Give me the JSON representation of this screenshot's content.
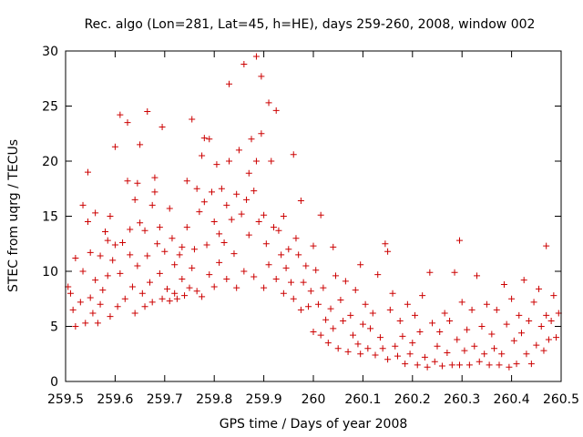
{
  "chart_data": {
    "type": "scatter",
    "title": "Rec. algo (Lon=281, Lat=45, h=HE), days 259-260, 2008, window 002",
    "xlabel": "GPS time / Days of year 2008",
    "ylabel": "STEC from uqrg / TECUs",
    "xlim": [
      259.5,
      260.5
    ],
    "ylim": [
      0,
      30
    ],
    "xticks": [
      "259.5",
      "259.6",
      "259.7",
      "259.8",
      "259.9",
      "260",
      "260.1",
      "260.2",
      "260.3",
      "260.4",
      "260.5"
    ],
    "yticks": [
      "0",
      "5",
      "10",
      "15",
      "20",
      "25",
      "30"
    ],
    "grid": false,
    "marker": "+",
    "color": "#cc0000",
    "points": [
      [
        259.505,
        8.6
      ],
      [
        259.51,
        8.0
      ],
      [
        259.515,
        6.5
      ],
      [
        259.52,
        5.0
      ],
      [
        259.52,
        11.2
      ],
      [
        259.53,
        7.2
      ],
      [
        259.535,
        16.0
      ],
      [
        259.535,
        10.0
      ],
      [
        259.54,
        5.3
      ],
      [
        259.545,
        14.5
      ],
      [
        259.545,
        19.0
      ],
      [
        259.55,
        11.7
      ],
      [
        259.55,
        7.6
      ],
      [
        259.555,
        6.2
      ],
      [
        259.56,
        15.3
      ],
      [
        259.56,
        9.2
      ],
      [
        259.565,
        5.3
      ],
      [
        259.57,
        11.4
      ],
      [
        259.57,
        7.0
      ],
      [
        259.575,
        8.3
      ],
      [
        259.58,
        13.6
      ],
      [
        259.585,
        12.8
      ],
      [
        259.585,
        9.6
      ],
      [
        259.59,
        5.9
      ],
      [
        259.59,
        15.0
      ],
      [
        259.595,
        11.0
      ],
      [
        259.6,
        21.3
      ],
      [
        259.6,
        12.4
      ],
      [
        259.605,
        6.8
      ],
      [
        259.61,
        24.2
      ],
      [
        259.61,
        9.8
      ],
      [
        259.615,
        12.6
      ],
      [
        259.62,
        7.5
      ],
      [
        259.625,
        23.5
      ],
      [
        259.625,
        18.2
      ],
      [
        259.63,
        13.8
      ],
      [
        259.63,
        11.5
      ],
      [
        259.635,
        8.6
      ],
      [
        259.64,
        16.5
      ],
      [
        259.64,
        6.2
      ],
      [
        259.645,
        18.0
      ],
      [
        259.645,
        10.5
      ],
      [
        259.65,
        21.5
      ],
      [
        259.65,
        14.4
      ],
      [
        259.655,
        8.0
      ],
      [
        259.66,
        13.7
      ],
      [
        259.66,
        6.8
      ],
      [
        259.665,
        24.5
      ],
      [
        259.665,
        11.4
      ],
      [
        259.67,
        9.0
      ],
      [
        259.675,
        16.0
      ],
      [
        259.675,
        7.2
      ],
      [
        259.68,
        18.5
      ],
      [
        259.68,
        17.2
      ],
      [
        259.685,
        12.5
      ],
      [
        259.69,
        14.0
      ],
      [
        259.69,
        9.8
      ],
      [
        259.695,
        23.1
      ],
      [
        259.695,
        7.5
      ],
      [
        259.7,
        11.8
      ],
      [
        259.705,
        8.4
      ],
      [
        259.71,
        7.3
      ],
      [
        259.71,
        15.7
      ],
      [
        259.715,
        13.0
      ],
      [
        259.72,
        10.6
      ],
      [
        259.72,
        8.0
      ],
      [
        259.725,
        7.5
      ],
      [
        259.73,
        11.5
      ],
      [
        259.735,
        12.2
      ],
      [
        259.735,
        9.3
      ],
      [
        259.74,
        7.8
      ],
      [
        259.745,
        18.2
      ],
      [
        259.745,
        14.0
      ],
      [
        259.75,
        8.5
      ],
      [
        259.755,
        23.8
      ],
      [
        259.755,
        10.3
      ],
      [
        259.76,
        12.0
      ],
      [
        259.765,
        17.5
      ],
      [
        259.765,
        8.2
      ],
      [
        259.77,
        15.4
      ],
      [
        259.775,
        20.5
      ],
      [
        259.775,
        7.7
      ],
      [
        259.78,
        22.1
      ],
      [
        259.78,
        16.3
      ],
      [
        259.785,
        12.4
      ],
      [
        259.79,
        22.0
      ],
      [
        259.79,
        9.7
      ],
      [
        259.795,
        17.2
      ],
      [
        259.8,
        14.5
      ],
      [
        259.8,
        8.6
      ],
      [
        259.805,
        19.7
      ],
      [
        259.81,
        13.4
      ],
      [
        259.81,
        10.8
      ],
      [
        259.815,
        17.5
      ],
      [
        259.82,
        12.6
      ],
      [
        259.825,
        16.0
      ],
      [
        259.825,
        9.3
      ],
      [
        259.83,
        27.0
      ],
      [
        259.83,
        20.0
      ],
      [
        259.835,
        14.7
      ],
      [
        259.84,
        11.6
      ],
      [
        259.845,
        17.0
      ],
      [
        259.845,
        8.5
      ],
      [
        259.85,
        21.0
      ],
      [
        259.855,
        15.2
      ],
      [
        259.86,
        28.8
      ],
      [
        259.86,
        10.0
      ],
      [
        259.865,
        16.5
      ],
      [
        259.87,
        18.9
      ],
      [
        259.87,
        13.3
      ],
      [
        259.875,
        22.0
      ],
      [
        259.88,
        17.3
      ],
      [
        259.88,
        9.5
      ],
      [
        259.885,
        29.5
      ],
      [
        259.885,
        20.0
      ],
      [
        259.89,
        14.5
      ],
      [
        259.895,
        27.7
      ],
      [
        259.895,
        22.5
      ],
      [
        259.9,
        15.1
      ],
      [
        259.9,
        8.5
      ],
      [
        259.905,
        12.5
      ],
      [
        259.91,
        25.3
      ],
      [
        259.91,
        10.6
      ],
      [
        259.915,
        20.0
      ],
      [
        259.92,
        14.0
      ],
      [
        259.925,
        24.6
      ],
      [
        259.925,
        9.3
      ],
      [
        259.93,
        13.7
      ],
      [
        259.935,
        11.5
      ],
      [
        259.94,
        15.0
      ],
      [
        259.94,
        8.0
      ],
      [
        259.945,
        10.3
      ],
      [
        259.95,
        12.0
      ],
      [
        259.955,
        9.0
      ],
      [
        259.96,
        20.6
      ],
      [
        259.96,
        7.5
      ],
      [
        259.965,
        13.0
      ],
      [
        259.97,
        11.5
      ],
      [
        259.975,
        6.5
      ],
      [
        259.975,
        16.4
      ],
      [
        259.98,
        9.0
      ],
      [
        259.985,
        10.5
      ],
      [
        259.99,
        6.8
      ],
      [
        259.995,
        8.2
      ],
      [
        260.0,
        12.3
      ],
      [
        260.0,
        4.5
      ],
      [
        260.005,
        10.1
      ],
      [
        260.01,
        7.0
      ],
      [
        260.015,
        15.1
      ],
      [
        260.015,
        4.2
      ],
      [
        260.02,
        8.5
      ],
      [
        260.025,
        5.6
      ],
      [
        260.03,
        3.5
      ],
      [
        260.035,
        6.6
      ],
      [
        260.04,
        12.2
      ],
      [
        260.04,
        4.8
      ],
      [
        260.045,
        9.6
      ],
      [
        260.05,
        3.0
      ],
      [
        260.055,
        7.4
      ],
      [
        260.06,
        5.5
      ],
      [
        260.065,
        9.1
      ],
      [
        260.07,
        2.7
      ],
      [
        260.075,
        6.0
      ],
      [
        260.08,
        4.2
      ],
      [
        260.085,
        8.3
      ],
      [
        260.09,
        3.4
      ],
      [
        260.095,
        10.6
      ],
      [
        260.095,
        2.5
      ],
      [
        260.1,
        5.2
      ],
      [
        260.105,
        7.0
      ],
      [
        260.11,
        3.0
      ],
      [
        260.115,
        4.8
      ],
      [
        260.12,
        6.2
      ],
      [
        260.125,
        2.4
      ],
      [
        260.13,
        9.7
      ],
      [
        260.135,
        4.0
      ],
      [
        260.14,
        3.0
      ],
      [
        260.145,
        12.5
      ],
      [
        260.15,
        11.8
      ],
      [
        260.15,
        2.0
      ],
      [
        260.155,
        6.5
      ],
      [
        260.16,
        8.0
      ],
      [
        260.165,
        3.2
      ],
      [
        260.17,
        2.3
      ],
      [
        260.175,
        5.5
      ],
      [
        260.18,
        4.1
      ],
      [
        260.185,
        1.6
      ],
      [
        260.19,
        7.0
      ],
      [
        260.195,
        2.5
      ],
      [
        260.2,
        3.5
      ],
      [
        260.205,
        6.0
      ],
      [
        260.21,
        1.5
      ],
      [
        260.215,
        4.5
      ],
      [
        260.22,
        7.8
      ],
      [
        260.225,
        2.2
      ],
      [
        260.23,
        1.3
      ],
      [
        260.235,
        9.9
      ],
      [
        260.24,
        5.3
      ],
      [
        260.245,
        1.8
      ],
      [
        260.25,
        3.2
      ],
      [
        260.255,
        4.5
      ],
      [
        260.26,
        1.4
      ],
      [
        260.265,
        6.2
      ],
      [
        260.27,
        2.6
      ],
      [
        260.275,
        5.5
      ],
      [
        260.28,
        1.5
      ],
      [
        260.285,
        9.9
      ],
      [
        260.29,
        3.8
      ],
      [
        260.295,
        12.8
      ],
      [
        260.295,
        1.5
      ],
      [
        260.3,
        7.2
      ],
      [
        260.305,
        2.8
      ],
      [
        260.31,
        4.7
      ],
      [
        260.315,
        1.5
      ],
      [
        260.32,
        6.5
      ],
      [
        260.325,
        3.2
      ],
      [
        260.33,
        9.6
      ],
      [
        260.335,
        1.8
      ],
      [
        260.34,
        5.0
      ],
      [
        260.345,
        2.5
      ],
      [
        260.35,
        7.0
      ],
      [
        260.355,
        1.5
      ],
      [
        260.36,
        4.3
      ],
      [
        260.365,
        3.0
      ],
      [
        260.37,
        6.5
      ],
      [
        260.375,
        1.5
      ],
      [
        260.38,
        2.5
      ],
      [
        260.385,
        8.8
      ],
      [
        260.39,
        5.2
      ],
      [
        260.395,
        1.3
      ],
      [
        260.4,
        7.5
      ],
      [
        260.405,
        3.7
      ],
      [
        260.41,
        1.6
      ],
      [
        260.415,
        6.0
      ],
      [
        260.42,
        4.4
      ],
      [
        260.425,
        9.2
      ],
      [
        260.43,
        2.5
      ],
      [
        260.435,
        5.5
      ],
      [
        260.44,
        1.6
      ],
      [
        260.445,
        7.2
      ],
      [
        260.45,
        3.3
      ],
      [
        260.455,
        8.4
      ],
      [
        260.46,
        5.0
      ],
      [
        260.465,
        2.8
      ],
      [
        260.47,
        12.3
      ],
      [
        260.47,
        6.0
      ],
      [
        260.475,
        3.8
      ],
      [
        260.48,
        5.5
      ],
      [
        260.485,
        7.8
      ],
      [
        260.49,
        4.0
      ],
      [
        260.495,
        6.2
      ]
    ]
  }
}
